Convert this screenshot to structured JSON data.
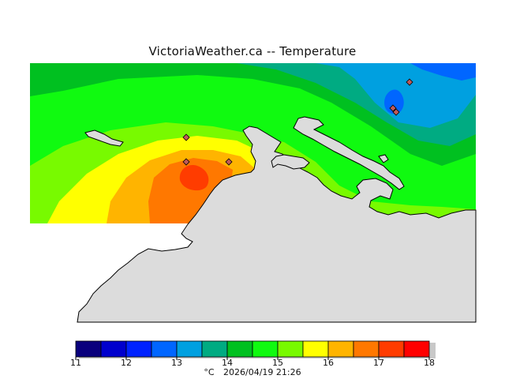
{
  "title": "VictoriaWeather.ca -- Temperature",
  "legend": {
    "colors": [
      "#0a007d",
      "#0000cd",
      "#0022ff",
      "#0066ff",
      "#00a0e0",
      "#00ab82",
      "#00c020",
      "#10fa10",
      "#78fa00",
      "#ffff00",
      "#ffb400",
      "#ff7800",
      "#ff3c00",
      "#ff0000"
    ],
    "ticks": [
      "11",
      "12",
      "13",
      "14",
      "15",
      "16",
      "17",
      "18"
    ],
    "unit": "°C",
    "timestamp": "2026/04/19 21:26"
  },
  "colors": {
    "land": "#dcdcdc",
    "coastline": "#000000",
    "station_marker": "#c05a5a"
  },
  "stations_count_visible": 6
}
